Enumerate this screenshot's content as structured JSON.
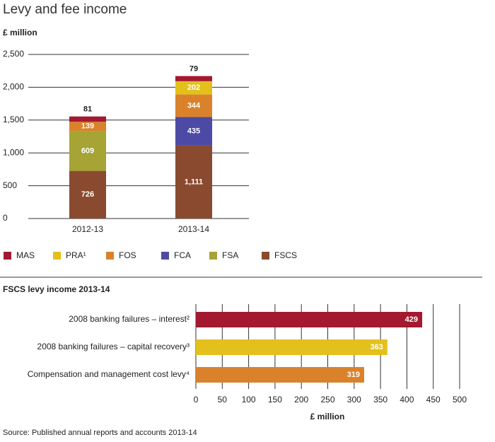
{
  "chart_data": [
    {
      "type": "bar",
      "stacked": true,
      "title": "Levy and fee income",
      "y_label": "£ million",
      "categories": [
        "2012-13",
        "2013-14"
      ],
      "series": [
        {
          "name": "MAS",
          "color": "#a3192f",
          "values": [
            81,
            79
          ]
        },
        {
          "name": "PRA¹",
          "color": "#e3c01c",
          "values": [
            null,
            202
          ]
        },
        {
          "name": "FOS",
          "color": "#d9822b",
          "values": [
            139,
            344
          ]
        },
        {
          "name": "FCA",
          "color": "#4d4aa6",
          "values": [
            null,
            435
          ]
        },
        {
          "name": "FSA",
          "color": "#a5a434",
          "values": [
            609,
            null
          ]
        },
        {
          "name": "FSCS",
          "color": "#8a4a2f",
          "values": [
            726,
            1111
          ],
          "value_labels": [
            "726",
            "1,111"
          ]
        }
      ],
      "ylim": [
        0,
        2500
      ],
      "yticks": [
        0,
        500,
        {
          "value": 1000,
          "label": "1,000"
        },
        {
          "value": 1500,
          "label": "1,500"
        },
        {
          "value": 2000,
          "label": "2,000"
        },
        {
          "value": 2500,
          "label": "2,500"
        }
      ],
      "grid": true
    },
    {
      "type": "bar",
      "orientation": "horizontal",
      "title": "FSCS levy income 2013-14",
      "x_label": "£ million",
      "categories": [
        "2008 banking failures – interest²",
        "2008 banking failures – capital recovery³",
        "Compensation and management cost levy⁴"
      ],
      "values": [
        429,
        363,
        319
      ],
      "colors": [
        "#a3192f",
        "#e3c01c",
        "#d9822b"
      ],
      "xlim": [
        0,
        500
      ],
      "xticks": [
        0,
        50,
        100,
        150,
        200,
        250,
        300,
        350,
        400,
        450,
        500
      ],
      "grid": true
    }
  ],
  "source": "Source: Published annual reports and accounts 2013-14"
}
